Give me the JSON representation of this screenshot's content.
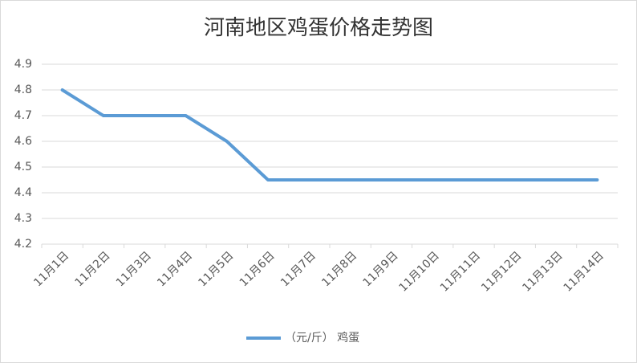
{
  "chart_data": {
    "type": "line",
    "title": "河南地区鸡蛋价格走势图",
    "categories": [
      "11月1日",
      "11月2日",
      "11月3日",
      "11月4日",
      "11月5日",
      "11月6日",
      "11月7日",
      "11月8日",
      "11月9日",
      "11月10日",
      "11月11日",
      "11月12日",
      "11月13日",
      "11月14日"
    ],
    "series": [
      {
        "name": "（元/斤） 鸡蛋",
        "color": "#5b9bd5",
        "values": [
          4.8,
          4.7,
          4.7,
          4.7,
          4.6,
          4.45,
          4.45,
          4.45,
          4.45,
          4.45,
          4.45,
          4.45,
          4.45,
          4.45
        ]
      }
    ],
    "ylim": [
      4.2,
      4.9
    ],
    "yticks": [
      4.2,
      4.3,
      4.4,
      4.5,
      4.6,
      4.7,
      4.8,
      4.9
    ],
    "grid": true,
    "legend": "bottom"
  }
}
